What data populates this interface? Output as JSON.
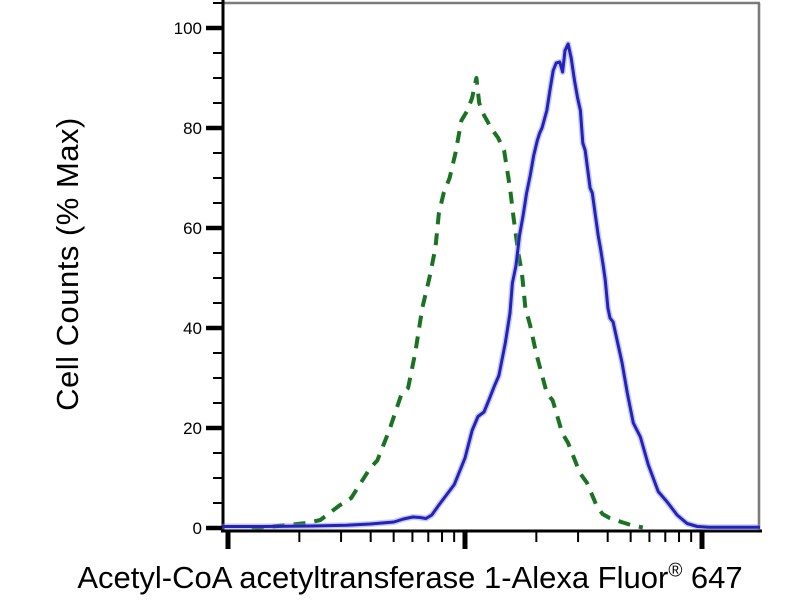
{
  "chart_data": {
    "type": "line",
    "subtype": "flow-cytometry-overlay-histogram",
    "title": "",
    "xlabel": "Acetyl-CoA acetyltransferase 1-Alexa Fluor® 647",
    "xlabel_prefix": "Acetyl-CoA acetyltransferase 1-Alexa Fluor",
    "xlabel_registered_mark": "®",
    "xlabel_suffix": " 647",
    "ylabel": "Cell Counts (% Max)",
    "grid": false,
    "legend": "none",
    "axis_color": "#000000",
    "frame_color": "#7b7b7b",
    "x_axis": {
      "scale": "log",
      "tick_labels_visible": false,
      "xlim_decades": [
        -0.025,
        2.245
      ],
      "major_tick_decades": [
        0,
        1,
        2
      ],
      "minor_ticks": "log-spaced at 2-9 within each decade"
    },
    "y_axis": {
      "ylim": [
        0,
        105
      ],
      "major_ticks": [
        0,
        20,
        40,
        60,
        80,
        100
      ],
      "tick_labels": [
        "0",
        "20",
        "40",
        "60",
        "80",
        "100"
      ],
      "minor_tick_step": 5
    },
    "series": [
      {
        "name": "green-dashed-curve",
        "style": "dashed",
        "color": "#1a7323",
        "peak_percent": 90,
        "points": [
          [
            0.1,
            0
          ],
          [
            0.19,
            0.3
          ],
          [
            0.33,
            1.0
          ],
          [
            0.39,
            1.6
          ],
          [
            0.47,
            4.5
          ],
          [
            0.52,
            6
          ],
          [
            0.6,
            12
          ],
          [
            0.63,
            13.5
          ],
          [
            0.68,
            19.5
          ],
          [
            0.73,
            26.5
          ],
          [
            0.76,
            28
          ],
          [
            0.79,
            35
          ],
          [
            0.82,
            44
          ],
          [
            0.85,
            50
          ],
          [
            0.875,
            56
          ],
          [
            0.89,
            63
          ],
          [
            0.91,
            67
          ],
          [
            0.935,
            70
          ],
          [
            0.96,
            75
          ],
          [
            0.985,
            81.5
          ],
          [
            1.01,
            83.5
          ],
          [
            1.03,
            86
          ],
          [
            1.048,
            90
          ],
          [
            1.06,
            85
          ],
          [
            1.075,
            83
          ],
          [
            1.11,
            80
          ],
          [
            1.14,
            78
          ],
          [
            1.165,
            75.5
          ],
          [
            1.19,
            68
          ],
          [
            1.205,
            62
          ],
          [
            1.225,
            55
          ],
          [
            1.24,
            51
          ],
          [
            1.255,
            44
          ],
          [
            1.275,
            40.5
          ],
          [
            1.3,
            35
          ],
          [
            1.345,
            27
          ],
          [
            1.37,
            25.5
          ],
          [
            1.41,
            19
          ],
          [
            1.435,
            17
          ],
          [
            1.485,
            11
          ],
          [
            1.515,
            9
          ],
          [
            1.555,
            4.5
          ],
          [
            1.58,
            2.8
          ],
          [
            1.61,
            2.0
          ],
          [
            1.66,
            1.2
          ],
          [
            1.7,
            0.6
          ],
          [
            1.75,
            0.1
          ]
        ]
      },
      {
        "name": "blue-solid-curve",
        "style": "solid",
        "color": "#2222bd",
        "halo_color": "#8a8ad8",
        "peak_percent": 97,
        "points": [
          [
            -0.025,
            0.3
          ],
          [
            0.15,
            0.3
          ],
          [
            0.35,
            0.4
          ],
          [
            0.5,
            0.55
          ],
          [
            0.6,
            0.8
          ],
          [
            0.65,
            1.0
          ],
          [
            0.7,
            1.2
          ],
          [
            0.74,
            1.8
          ],
          [
            0.78,
            2.2
          ],
          [
            0.81,
            2.1
          ],
          [
            0.835,
            1.9
          ],
          [
            0.86,
            2.6
          ],
          [
            0.89,
            4.6
          ],
          [
            0.925,
            6.8
          ],
          [
            0.955,
            8.7
          ],
          [
            1.0,
            14
          ],
          [
            1.03,
            19.5
          ],
          [
            1.055,
            22.3
          ],
          [
            1.08,
            23.2
          ],
          [
            1.1,
            25.5
          ],
          [
            1.125,
            28.5
          ],
          [
            1.143,
            30.5
          ],
          [
            1.17,
            37
          ],
          [
            1.19,
            43
          ],
          [
            1.2,
            49
          ],
          [
            1.215,
            52.5
          ],
          [
            1.23,
            58.5
          ],
          [
            1.245,
            62.5
          ],
          [
            1.26,
            67
          ],
          [
            1.275,
            70.5
          ],
          [
            1.29,
            74.5
          ],
          [
            1.305,
            77.5
          ],
          [
            1.315,
            79
          ],
          [
            1.325,
            80
          ],
          [
            1.345,
            83.5
          ],
          [
            1.36,
            88
          ],
          [
            1.372,
            91.5
          ],
          [
            1.385,
            93
          ],
          [
            1.4,
            93.2
          ],
          [
            1.412,
            91.2
          ],
          [
            1.422,
            95.5
          ],
          [
            1.435,
            96.8
          ],
          [
            1.448,
            94
          ],
          [
            1.462,
            89.5
          ],
          [
            1.475,
            86
          ],
          [
            1.487,
            83.5
          ],
          [
            1.497,
            77
          ],
          [
            1.507,
            75.5
          ],
          [
            1.517,
            72
          ],
          [
            1.528,
            68
          ],
          [
            1.537,
            67
          ],
          [
            1.55,
            62.5
          ],
          [
            1.562,
            58.5
          ],
          [
            1.572,
            55.8
          ],
          [
            1.583,
            52.5
          ],
          [
            1.592,
            49.5
          ],
          [
            1.603,
            44
          ],
          [
            1.612,
            42
          ],
          [
            1.625,
            41.2
          ],
          [
            1.635,
            39
          ],
          [
            1.663,
            33
          ],
          [
            1.685,
            27
          ],
          [
            1.71,
            21
          ],
          [
            1.74,
            18.2
          ],
          [
            1.773,
            12.7
          ],
          [
            1.815,
            7.3
          ],
          [
            1.853,
            5.2
          ],
          [
            1.895,
            2.6
          ],
          [
            1.937,
            0.9
          ],
          [
            1.98,
            0.3
          ],
          [
            2.03,
            0.15
          ],
          [
            2.245,
            0.15
          ]
        ]
      }
    ]
  }
}
